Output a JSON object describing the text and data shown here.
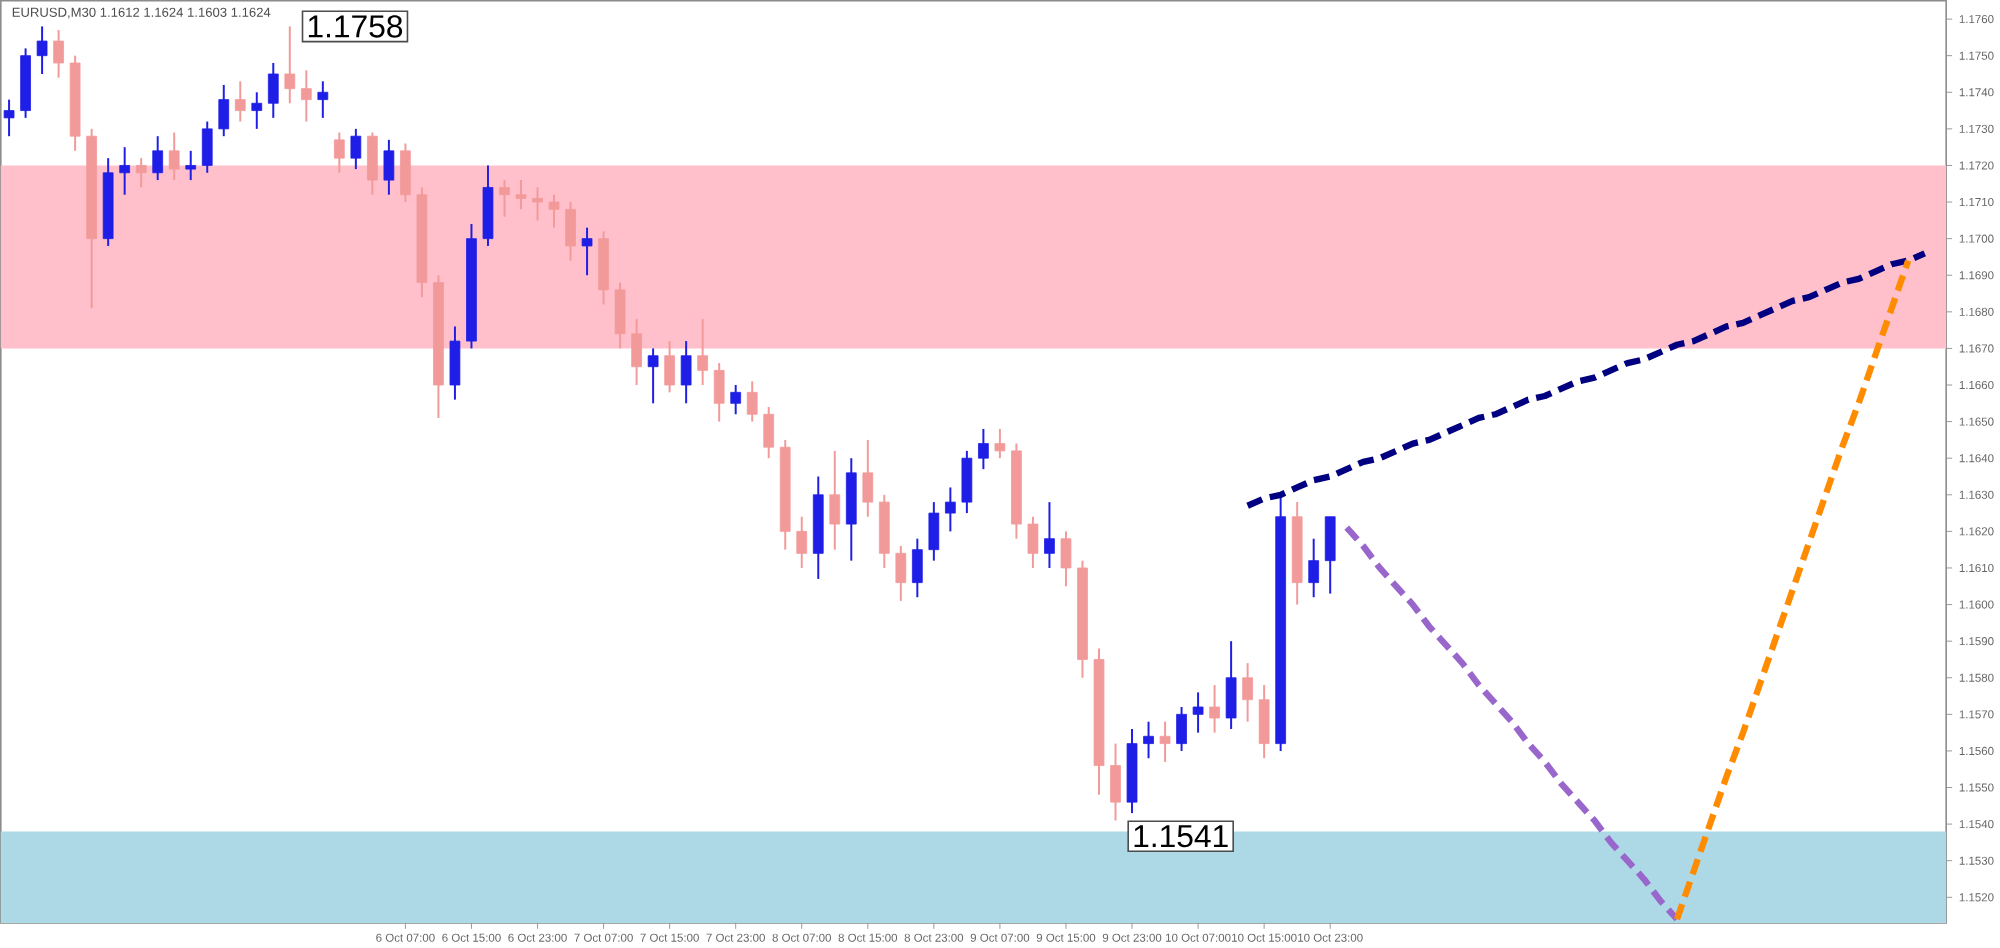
{
  "chart_data": {
    "type": "candlestick",
    "title": "EURUSD,M30  1.1612 1.1624 1.1603 1.1624",
    "categories": [
      null,
      null,
      null,
      null,
      null,
      null,
      null,
      null,
      null,
      null,
      null,
      null,
      null,
      null,
      null,
      null,
      null,
      null,
      null,
      null,
      null,
      null,
      null,
      null,
      "6 Oct 07:00",
      null,
      null,
      null,
      "6 Oct 15:00",
      null,
      null,
      null,
      "6 Oct 23:00",
      null,
      null,
      null,
      "7 Oct 07:00",
      null,
      null,
      null,
      "7 Oct 15:00",
      null,
      null,
      null,
      "7 Oct 23:00",
      null,
      null,
      null,
      "8 Oct 07:00",
      null,
      null,
      null,
      "8 Oct 15:00",
      null,
      null,
      null,
      "8 Oct 23:00",
      null,
      null,
      null,
      "9 Oct 07:00",
      null,
      null,
      null,
      "9 Oct 15:00",
      null,
      null,
      null,
      "9 Oct 23:00",
      null,
      null,
      null,
      "10 Oct 07:00",
      null,
      null,
      null,
      "10 Oct 15:00",
      null,
      null,
      null,
      "10 Oct 23:00",
      null,
      null,
      null,
      null,
      null,
      null,
      null,
      null,
      null,
      null,
      null,
      null,
      null,
      null,
      null,
      null,
      null,
      null,
      null,
      null,
      null,
      null,
      null,
      null,
      null,
      null,
      null,
      null,
      null,
      null,
      null,
      null,
      null,
      null,
      null,
      null
    ],
    "ohlc": [
      [
        1.1733,
        1.1738,
        1.1728,
        1.1735
      ],
      [
        1.1735,
        1.1752,
        1.1733,
        1.175
      ],
      [
        1.175,
        1.1758,
        1.1745,
        1.1754
      ],
      [
        1.1754,
        1.1757,
        1.1744,
        1.1748
      ],
      [
        1.1748,
        1.175,
        1.1724,
        1.1728
      ],
      [
        1.1728,
        1.173,
        1.1681,
        1.17
      ],
      [
        1.17,
        1.1722,
        1.1698,
        1.1718
      ],
      [
        1.1718,
        1.1725,
        1.1712,
        1.172
      ],
      [
        1.172,
        1.1722,
        1.1714,
        1.1718
      ],
      [
        1.1718,
        1.1728,
        1.1716,
        1.1724
      ],
      [
        1.1724,
        1.1729,
        1.1716,
        1.1719
      ],
      [
        1.1719,
        1.1724,
        1.1716,
        1.172
      ],
      [
        1.172,
        1.1732,
        1.1718,
        1.173
      ],
      [
        1.173,
        1.1742,
        1.1728,
        1.1738
      ],
      [
        1.1738,
        1.1743,
        1.1732,
        1.1735
      ],
      [
        1.1735,
        1.174,
        1.173,
        1.1737
      ],
      [
        1.1737,
        1.1748,
        1.1733,
        1.1745
      ],
      [
        1.1745,
        1.1758,
        1.1737,
        1.1741
      ],
      [
        1.1741,
        1.1746,
        1.1732,
        1.1738
      ],
      [
        1.1738,
        1.1743,
        1.1733,
        1.174
      ],
      [
        1.1727,
        1.1729,
        1.1718,
        1.1722
      ],
      [
        1.1722,
        1.173,
        1.1719,
        1.1728
      ],
      [
        1.1728,
        1.1729,
        1.1712,
        1.1716
      ],
      [
        1.1716,
        1.1727,
        1.1712,
        1.1724
      ],
      [
        1.1724,
        1.1726,
        1.171,
        1.1712
      ],
      [
        1.1712,
        1.1714,
        1.1684,
        1.1688
      ],
      [
        1.1688,
        1.169,
        1.1651,
        1.166
      ],
      [
        1.166,
        1.1676,
        1.1656,
        1.1672
      ],
      [
        1.1672,
        1.1704,
        1.167,
        1.17
      ],
      [
        1.17,
        1.172,
        1.1698,
        1.1714
      ],
      [
        1.1714,
        1.1716,
        1.1706,
        1.1712
      ],
      [
        1.1712,
        1.1716,
        1.1708,
        1.1711
      ],
      [
        1.1711,
        1.1714,
        1.1705,
        1.171
      ],
      [
        1.171,
        1.1712,
        1.1703,
        1.1708
      ],
      [
        1.1708,
        1.171,
        1.1694,
        1.1698
      ],
      [
        1.1698,
        1.1703,
        1.169,
        1.17
      ],
      [
        1.17,
        1.1702,
        1.1682,
        1.1686
      ],
      [
        1.1686,
        1.1688,
        1.167,
        1.1674
      ],
      [
        1.1674,
        1.1678,
        1.166,
        1.1665
      ],
      [
        1.1665,
        1.167,
        1.1655,
        1.1668
      ],
      [
        1.1668,
        1.1672,
        1.1658,
        1.166
      ],
      [
        1.166,
        1.1672,
        1.1655,
        1.1668
      ],
      [
        1.1668,
        1.1678,
        1.166,
        1.1664
      ],
      [
        1.1664,
        1.1666,
        1.165,
        1.1655
      ],
      [
        1.1655,
        1.166,
        1.1652,
        1.1658
      ],
      [
        1.1658,
        1.1661,
        1.165,
        1.1652
      ],
      [
        1.1652,
        1.1654,
        1.164,
        1.1643
      ],
      [
        1.1643,
        1.1645,
        1.1615,
        1.162
      ],
      [
        1.162,
        1.1624,
        1.161,
        1.1614
      ],
      [
        1.1614,
        1.1635,
        1.1607,
        1.163
      ],
      [
        1.163,
        1.1642,
        1.1615,
        1.1622
      ],
      [
        1.1622,
        1.164,
        1.1612,
        1.1636
      ],
      [
        1.1636,
        1.1645,
        1.1624,
        1.1628
      ],
      [
        1.1628,
        1.163,
        1.161,
        1.1614
      ],
      [
        1.1614,
        1.1616,
        1.1601,
        1.1606
      ],
      [
        1.1606,
        1.1618,
        1.1602,
        1.1615
      ],
      [
        1.1615,
        1.1628,
        1.1612,
        1.1625
      ],
      [
        1.1625,
        1.1632,
        1.162,
        1.1628
      ],
      [
        1.1628,
        1.1642,
        1.1625,
        1.164
      ],
      [
        1.164,
        1.1648,
        1.1637,
        1.1644
      ],
      [
        1.1644,
        1.1648,
        1.164,
        1.1642
      ],
      [
        1.1642,
        1.1644,
        1.1618,
        1.1622
      ],
      [
        1.1622,
        1.1624,
        1.161,
        1.1614
      ],
      [
        1.1614,
        1.1628,
        1.161,
        1.1618
      ],
      [
        1.1618,
        1.162,
        1.1605,
        1.161
      ],
      [
        1.161,
        1.1612,
        1.158,
        1.1585
      ],
      [
        1.1585,
        1.1588,
        1.1548,
        1.1556
      ],
      [
        1.1556,
        1.1562,
        1.1541,
        1.1546
      ],
      [
        1.1546,
        1.1566,
        1.1543,
        1.1562
      ],
      [
        1.1562,
        1.1568,
        1.1558,
        1.1564
      ],
      [
        1.1564,
        1.1568,
        1.1557,
        1.1562
      ],
      [
        1.1562,
        1.1572,
        1.156,
        1.157
      ],
      [
        1.157,
        1.1576,
        1.1565,
        1.1572
      ],
      [
        1.1572,
        1.1578,
        1.1565,
        1.1569
      ],
      [
        1.1569,
        1.159,
        1.1566,
        1.158
      ],
      [
        1.158,
        1.1584,
        1.1568,
        1.1574
      ],
      [
        1.1574,
        1.1578,
        1.1558,
        1.1562
      ],
      [
        1.1562,
        1.163,
        1.156,
        1.1624
      ],
      [
        1.1624,
        1.1628,
        1.16,
        1.1606
      ],
      [
        1.1606,
        1.1618,
        1.1602,
        1.1612
      ],
      [
        1.1612,
        1.1624,
        1.1603,
        1.1624
      ],
      null,
      null,
      null,
      null,
      null,
      null,
      null,
      null,
      null,
      null,
      null,
      null,
      null,
      null,
      null,
      null,
      null,
      null,
      null,
      null,
      null,
      null,
      null,
      null,
      null,
      null,
      null,
      null,
      null,
      null,
      null,
      null,
      null,
      null,
      null,
      null
    ],
    "colors": [
      "#1e1ee6",
      "#1e1ee6",
      "#1e1ee6",
      "#f29a9a",
      "#f29a9a",
      "#f29a9a",
      "#1e1ee6",
      "#1e1ee6",
      "#f29a9a",
      "#1e1ee6",
      "#f29a9a",
      "#1e1ee6",
      "#1e1ee6",
      "#1e1ee6",
      "#f29a9a",
      "#1e1ee6",
      "#1e1ee6",
      "#f29a9a",
      "#f29a9a",
      "#1e1ee6",
      "#f29a9a",
      "#1e1ee6",
      "#f29a9a",
      "#1e1ee6",
      "#f29a9a",
      "#f29a9a",
      "#f29a9a",
      "#1e1ee6",
      "#1e1ee6",
      "#1e1ee6",
      "#f29a9a",
      "#f29a9a",
      "#f29a9a",
      "#f29a9a",
      "#f29a9a",
      "#1e1ee6",
      "#f29a9a",
      "#f29a9a",
      "#f29a9a",
      "#1e1ee6",
      "#f29a9a",
      "#1e1ee6",
      "#f29a9a",
      "#f29a9a",
      "#1e1ee6",
      "#f29a9a",
      "#f29a9a",
      "#f29a9a",
      "#f29a9a",
      "#1e1ee6",
      "#f29a9a",
      "#1e1ee6",
      "#f29a9a",
      "#f29a9a",
      "#f29a9a",
      "#1e1ee6",
      "#1e1ee6",
      "#1e1ee6",
      "#1e1ee6",
      "#1e1ee6",
      "#f29a9a",
      "#f29a9a",
      "#f29a9a",
      "#1e1ee6",
      "#f29a9a",
      "#f29a9a",
      "#f29a9a",
      "#f29a9a",
      "#1e1ee6",
      "#1e1ee6",
      "#f29a9a",
      "#1e1ee6",
      "#1e1ee6",
      "#f29a9a",
      "#1e1ee6",
      "#f29a9a",
      "#f29a9a",
      "#1e1ee6",
      "#f29a9a",
      "#1e1ee6",
      "#1e1ee6",
      null,
      null,
      null,
      null,
      null,
      null,
      null,
      null,
      null,
      null,
      null,
      null,
      null,
      null,
      null,
      null,
      null,
      null,
      null,
      null,
      null,
      null,
      null,
      null,
      null,
      null,
      null,
      null,
      null,
      null,
      null,
      null,
      null,
      null,
      null,
      null
    ],
    "series": [
      {
        "type": "line",
        "color": "#000080",
        "line_style": "dashed",
        "values": [
          null,
          null,
          null,
          null,
          null,
          null,
          null,
          null,
          null,
          null,
          null,
          null,
          null,
          null,
          null,
          null,
          null,
          null,
          null,
          null,
          null,
          null,
          null,
          null,
          null,
          null,
          null,
          null,
          null,
          null,
          null,
          null,
          null,
          null,
          null,
          null,
          null,
          null,
          null,
          null,
          null,
          null,
          null,
          null,
          null,
          null,
          null,
          null,
          null,
          null,
          null,
          null,
          null,
          null,
          null,
          null,
          null,
          null,
          null,
          null,
          null,
          null,
          null,
          null,
          null,
          null,
          null,
          null,
          null,
          null,
          null,
          null,
          null,
          null,
          null,
          1.1627,
          1.1629,
          1.163,
          1.1632,
          1.1634,
          1.1635,
          1.1637,
          1.1639,
          1.164,
          1.1642,
          1.1644,
          1.1645,
          1.1647,
          1.1649,
          1.1651,
          1.1652,
          1.1654,
          1.1656,
          1.1657,
          1.1659,
          1.1661,
          1.1662,
          1.1664,
          1.1666,
          1.1667,
          1.1669,
          1.1671,
          1.1672,
          1.1674,
          1.1676,
          1.1677,
          1.1679,
          1.1681,
          1.1683,
          1.1684,
          1.1686,
          1.1688,
          1.1689,
          1.1691,
          1.1693,
          1.1694,
          1.1696
        ]
      },
      {
        "type": "line",
        "color": "#9966cc",
        "line_style": "dashed",
        "values": [
          null,
          null,
          null,
          null,
          null,
          null,
          null,
          null,
          null,
          null,
          null,
          null,
          null,
          null,
          null,
          null,
          null,
          null,
          null,
          null,
          null,
          null,
          null,
          null,
          null,
          null,
          null,
          null,
          null,
          null,
          null,
          null,
          null,
          null,
          null,
          null,
          null,
          null,
          null,
          null,
          null,
          null,
          null,
          null,
          null,
          null,
          null,
          null,
          null,
          null,
          null,
          null,
          null,
          null,
          null,
          null,
          null,
          null,
          null,
          null,
          null,
          null,
          null,
          null,
          null,
          null,
          null,
          null,
          null,
          null,
          null,
          null,
          null,
          null,
          null,
          null,
          null,
          null,
          null,
          null,
          null,
          1.1621,
          1.1616,
          1.161,
          1.1605,
          1.16,
          1.1594,
          1.1589,
          1.1584,
          1.1578,
          1.1573,
          1.1568,
          1.1562,
          1.1557,
          1.1551,
          1.1546,
          1.1541,
          1.1535,
          1.153,
          1.1525,
          1.1519,
          1.1514,
          null,
          null,
          null,
          null,
          null,
          null,
          null,
          null,
          null,
          null,
          null,
          null,
          null,
          null,
          null
        ]
      },
      {
        "type": "line",
        "color": "#ff8c00",
        "line_style": "dashed",
        "values": [
          null,
          null,
          null,
          null,
          null,
          null,
          null,
          null,
          null,
          null,
          null,
          null,
          null,
          null,
          null,
          null,
          null,
          null,
          null,
          null,
          null,
          null,
          null,
          null,
          null,
          null,
          null,
          null,
          null,
          null,
          null,
          null,
          null,
          null,
          null,
          null,
          null,
          null,
          null,
          null,
          null,
          null,
          null,
          null,
          null,
          null,
          null,
          null,
          null,
          null,
          null,
          null,
          null,
          null,
          null,
          null,
          null,
          null,
          null,
          null,
          null,
          null,
          null,
          null,
          null,
          null,
          null,
          null,
          null,
          null,
          null,
          null,
          null,
          null,
          null,
          null,
          null,
          null,
          null,
          null,
          null,
          null,
          null,
          null,
          null,
          null,
          null,
          null,
          null,
          null,
          null,
          null,
          null,
          null,
          null,
          null,
          null,
          null,
          null,
          null,
          null,
          1.1514,
          1.1527,
          1.154,
          1.1553,
          1.1565,
          1.1578,
          1.1591,
          1.1604,
          1.1617,
          1.163,
          1.1643,
          1.1655,
          1.1668,
          1.1681,
          1.1694,
          null
        ]
      }
    ],
    "bands": [
      {
        "axis": "y",
        "from": 1.167,
        "to": 1.172,
        "color": "#ffc0cb"
      },
      {
        "axis": "y",
        "from": 1.1513,
        "to": 1.1538,
        "color": "#add8e6"
      }
    ],
    "annotations": [
      "1.1758",
      "1.1541"
    ],
    "ylim": [
      1.1513,
      1.1765
    ],
    "yticks": [
      {
        "value": 1.152,
        "label": "1.1520"
      },
      {
        "value": 1.153,
        "label": "1.1530"
      },
      {
        "value": 1.154,
        "label": "1.1540"
      },
      {
        "value": 1.155,
        "label": "1.1550"
      },
      {
        "value": 1.156,
        "label": "1.1560"
      },
      {
        "value": 1.157,
        "label": "1.1570"
      },
      {
        "value": 1.158,
        "label": "1.1580"
      },
      {
        "value": 1.159,
        "label": "1.1590"
      },
      {
        "value": 1.16,
        "label": "1.1600"
      },
      {
        "value": 1.161,
        "label": "1.1610"
      },
      {
        "value": 1.162,
        "label": "1.1620"
      },
      {
        "value": 1.163,
        "label": "1.1630"
      },
      {
        "value": 1.164,
        "label": "1.1640"
      },
      {
        "value": 1.165,
        "label": "1.1650"
      },
      {
        "value": 1.166,
        "label": "1.1660"
      },
      {
        "value": 1.167,
        "label": "1.1670"
      },
      {
        "value": 1.168,
        "label": "1.1680"
      },
      {
        "value": 1.169,
        "label": "1.1690"
      },
      {
        "value": 1.17,
        "label": "1.1700"
      },
      {
        "value": 1.171,
        "label": "1.1710"
      },
      {
        "value": 1.172,
        "label": "1.1720"
      },
      {
        "value": 1.173,
        "label": "1.1730"
      },
      {
        "value": 1.174,
        "label": "1.1740"
      },
      {
        "value": 1.175,
        "label": "1.1750"
      },
      {
        "value": 1.176,
        "label": "1.1760"
      }
    ],
    "grid": false
  }
}
